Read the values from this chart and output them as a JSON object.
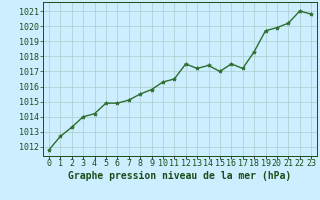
{
  "x": [
    0,
    1,
    2,
    3,
    4,
    5,
    6,
    7,
    8,
    9,
    10,
    11,
    12,
    13,
    14,
    15,
    16,
    17,
    18,
    19,
    20,
    21,
    22,
    23
  ],
  "y": [
    1011.8,
    1012.7,
    1013.3,
    1014.0,
    1014.2,
    1014.9,
    1014.9,
    1015.1,
    1015.5,
    1015.8,
    1016.3,
    1016.5,
    1017.5,
    1017.2,
    1017.4,
    1017.0,
    1017.5,
    1017.2,
    1018.3,
    1019.7,
    1019.9,
    1020.2,
    1021.0,
    1020.8
  ],
  "line_color": "#2d6e2d",
  "marker": "*",
  "marker_color": "#2d6e2d",
  "marker_size": 3,
  "bg_color": "#cceeff",
  "grid_color": "#aacccc",
  "ylabel_ticks": [
    1012,
    1013,
    1014,
    1015,
    1016,
    1017,
    1018,
    1019,
    1020,
    1021
  ],
  "ylim": [
    1011.4,
    1021.6
  ],
  "xlim": [
    -0.5,
    23.5
  ],
  "xlabel": "Graphe pression niveau de la mer (hPa)",
  "xlabel_color": "#1a4d1a",
  "xlabel_fontsize": 7.0,
  "tick_fontsize": 6.0,
  "linewidth": 1.0
}
